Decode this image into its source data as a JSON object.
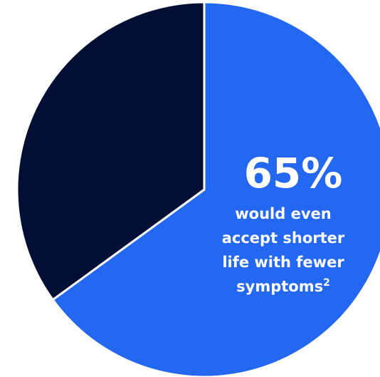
{
  "chart_data": {
    "type": "pie",
    "slices": [
      {
        "value": 65,
        "label": "65%",
        "color": "#2468f2"
      },
      {
        "value": 35,
        "label": "",
        "color": "#000f33"
      }
    ],
    "callout": {
      "value_label": "65%",
      "lines": [
        "would even",
        "accept shorter",
        "life with fewer",
        "symptoms"
      ],
      "footnote": "2"
    }
  }
}
